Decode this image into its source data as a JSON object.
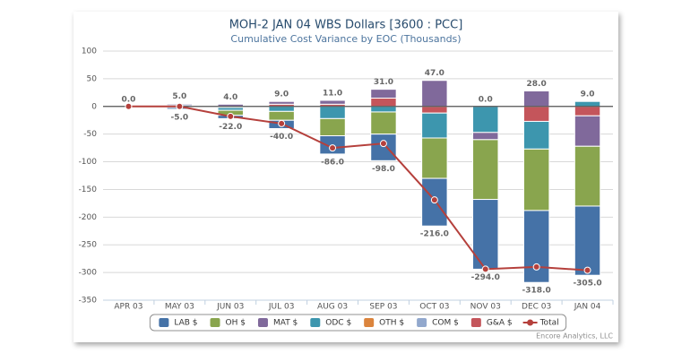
{
  "chart_data": {
    "type": "bar",
    "stacked": true,
    "title": "MOH-2 JAN 04 WBS Dollars [3600 : PCC]",
    "subtitle": "Cumulative Cost Variance by EOC (Thousands)",
    "credit": "Encore Analytics, LLC",
    "categories": [
      "APR 03",
      "MAY 03",
      "JUN 03",
      "JUL 03",
      "AUG 03",
      "SEP 03",
      "OCT 03",
      "NOV 03",
      "DEC 03",
      "JAN 04"
    ],
    "series": [
      {
        "name": "LAB $",
        "color": "#4572a7",
        "values": [
          0,
          -3,
          -6,
          -15,
          -33,
          -48,
          -86,
          -126,
          -130,
          -125
        ]
      },
      {
        "name": "OH $",
        "color": "#89a54e",
        "values": [
          0,
          0,
          -9,
          -16,
          -31,
          -40,
          -73,
          -108,
          -111,
          -108
        ]
      },
      {
        "name": "MAT $",
        "color": "#80699b",
        "values": [
          0,
          2,
          4,
          5,
          7,
          16,
          47,
          -13,
          28,
          -55
        ]
      },
      {
        "name": "ODC $",
        "color": "#3d96ae",
        "values": [
          0,
          -2,
          -5,
          -9,
          -22,
          -10,
          -45,
          -47,
          -50,
          9
        ]
      },
      {
        "name": "OTH $",
        "color": "#db843d",
        "values": [
          0,
          0,
          0,
          0,
          0,
          0,
          0,
          0,
          0,
          0
        ]
      },
      {
        "name": "COM $",
        "color": "#92a8cd",
        "values": [
          0,
          3,
          -2,
          0,
          0,
          0,
          0,
          0,
          0,
          0
        ]
      },
      {
        "name": "G&A $",
        "color": "#c4555b",
        "values": [
          0,
          0,
          0,
          4,
          4,
          15,
          -12,
          0,
          -27,
          -17
        ]
      },
      {
        "name": "Total",
        "type": "line",
        "color": "#b5403c",
        "values": [
          0,
          0,
          -18,
          -31,
          -75,
          -67,
          -169,
          -294,
          -290,
          -296
        ]
      }
    ],
    "stack_totals": {
      "positive": {
        "values": [
          0,
          5,
          4,
          9,
          11,
          31,
          47,
          0,
          28,
          9
        ],
        "value_labels": [
          "0.0",
          "5.0",
          "4.0",
          "9.0",
          "11.0",
          "31.0",
          "47.0",
          "0.0",
          "28.0",
          "9.0"
        ]
      },
      "negative": {
        "values": [
          null,
          -5,
          -22,
          -40,
          -86,
          -98,
          -216,
          -294,
          -318,
          -305
        ],
        "value_labels": [
          null,
          "-5.0",
          "-22.0",
          "-40.0",
          "-86.0",
          "-98.0",
          "-216.0",
          "-294.0",
          "-318.0",
          "-305.0"
        ]
      }
    },
    "ylim": [
      -350,
      100
    ],
    "yticks": [
      -350,
      -300,
      -250,
      -200,
      -150,
      -100,
      -50,
      0,
      50,
      100
    ],
    "grid": true,
    "legend": "bottom"
  }
}
